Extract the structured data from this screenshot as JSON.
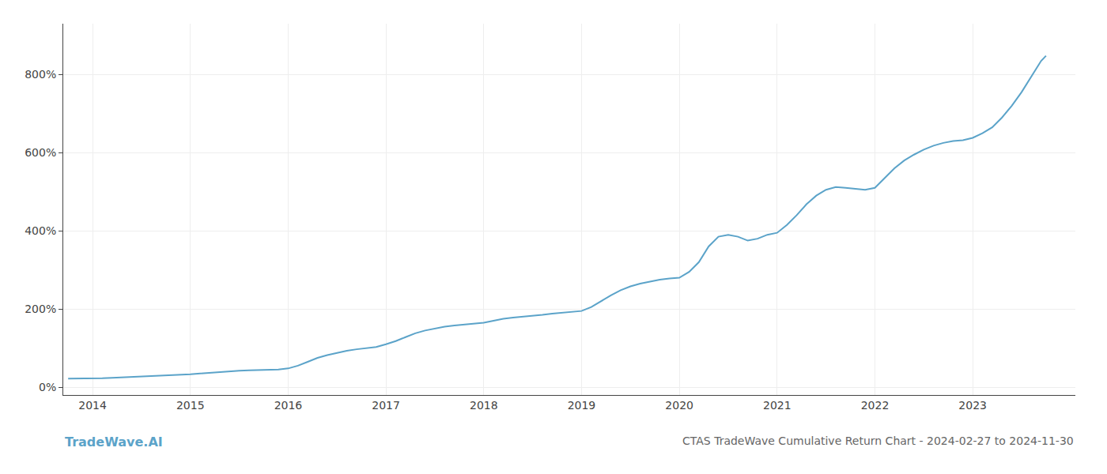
{
  "chart_data": {
    "type": "line",
    "title": "CTAS TradeWave Cumulative Return Chart - 2024-02-27 to 2024-11-30",
    "annotations": [
      "TradeWave.AI"
    ],
    "x": [
      2013.75,
      2013.85,
      2013.95,
      2014.0,
      2014.1,
      2014.2,
      2014.3,
      2014.4,
      2014.5,
      2014.6,
      2014.7,
      2014.8,
      2014.9,
      2015.0,
      2015.1,
      2015.2,
      2015.3,
      2015.4,
      2015.5,
      2015.6,
      2015.7,
      2015.8,
      2015.9,
      2016.0,
      2016.1,
      2016.2,
      2016.3,
      2016.4,
      2016.5,
      2016.6,
      2016.7,
      2016.8,
      2016.9,
      2017.0,
      2017.1,
      2017.2,
      2017.3,
      2017.4,
      2017.5,
      2017.6,
      2017.7,
      2017.8,
      2017.9,
      2018.0,
      2018.1,
      2018.2,
      2018.3,
      2018.4,
      2018.5,
      2018.6,
      2018.7,
      2018.8,
      2018.9,
      2019.0,
      2019.1,
      2019.2,
      2019.3,
      2019.4,
      2019.5,
      2019.6,
      2019.7,
      2019.8,
      2019.9,
      2020.0,
      2020.1,
      2020.2,
      2020.3,
      2020.4,
      2020.5,
      2020.6,
      2020.7,
      2020.8,
      2020.9,
      2021.0,
      2021.1,
      2021.2,
      2021.3,
      2021.4,
      2021.5,
      2021.6,
      2021.7,
      2021.8,
      2021.9,
      2022.0,
      2022.1,
      2022.2,
      2022.3,
      2022.4,
      2022.5,
      2022.6,
      2022.7,
      2022.8,
      2022.9,
      2023.0,
      2023.1,
      2023.2,
      2023.3,
      2023.4,
      2023.5,
      2023.6,
      2023.7,
      2023.75
    ],
    "series": [
      {
        "color": "#5ba3c9",
        "values": [
          22,
          22,
          22,
          22,
          23,
          24,
          25,
          26,
          27,
          28,
          29,
          30,
          31,
          33,
          35,
          37,
          38,
          40,
          42,
          43,
          44,
          44,
          45,
          48,
          55,
          65,
          75,
          82,
          88,
          93,
          97,
          100,
          103,
          110,
          118,
          128,
          138,
          145,
          150,
          155,
          158,
          160,
          162,
          165,
          170,
          175,
          178,
          180,
          182,
          185,
          188,
          190,
          192,
          195,
          205,
          220,
          235,
          248,
          258,
          265,
          270,
          275,
          278,
          280,
          295,
          320,
          360,
          385,
          390,
          385,
          375,
          380,
          390,
          395,
          415,
          440,
          468,
          490,
          505,
          512,
          510,
          508,
          505,
          510,
          535,
          560,
          580,
          595,
          608,
          618,
          625,
          630,
          632,
          638,
          650,
          665,
          690,
          720,
          755,
          795,
          835,
          848
        ]
      }
    ],
    "xlim": [
      2013.7,
      2024.05
    ],
    "xticks": [
      2014,
      2015,
      2016,
      2017,
      2018,
      2019,
      2020,
      2021,
      2022,
      2023
    ],
    "ylim": [
      -20,
      930
    ],
    "yticks": [
      {
        "value": 0,
        "label": "0%"
      },
      {
        "value": 200,
        "label": "200%"
      },
      {
        "value": 400,
        "label": "400%"
      },
      {
        "value": 600,
        "label": "600%"
      },
      {
        "value": 800,
        "label": "800%"
      }
    ],
    "grid": true
  }
}
